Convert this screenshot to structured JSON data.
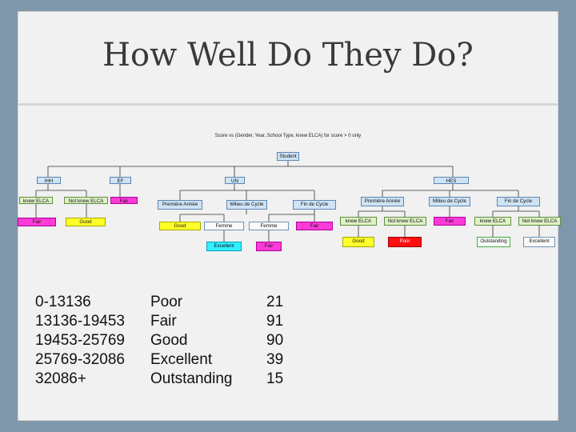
{
  "title": "How Well Do They Do?",
  "tree_title": "Score vs (Gender, Year, School Type, knew ELCA) for score > 0 only",
  "nodes": {
    "student": "Student",
    "ihh": "IHH",
    "ef": "EF",
    "un": "UN",
    "hes": "HES",
    "ihh_knew": "knew ELCA",
    "ihh_notknew": "Not knew ELCA",
    "ef_fair": "Fair",
    "ihh_knew_fair": "Fair",
    "ihh_notknew_good": "Good",
    "un_premiere": "Première Année",
    "un_milieu": "Milieu de Cycle",
    "un_fin": "Fin de Cycle",
    "un_milieu_good": "Good",
    "un_milieu_femme": "Femme",
    "un_fin_femme": "Femme",
    "un_fin_fair": "Fair",
    "un_femme_excellent": "Excellent",
    "un_femme_fair": "Fair",
    "hes_premiere": "Première Année",
    "hes_milieu": "Milieu de Cycle",
    "hes_fin": "Fin de Cycle",
    "hes_prem_knew": "knew ELCA",
    "hes_prem_notknew": "Not knew ELCA",
    "hes_milieu_fair": "Fair",
    "hes_fin_knew": "knew ELCA",
    "hes_fin_notknew": "Not knew ELCA",
    "hes_prem_knew_good": "Good",
    "hes_prem_notknew_poor": "Poor",
    "hes_fin_knew_out": "Outstanding",
    "hes_fin_notknew_exc": "Excellent"
  },
  "legend": {
    "ranges": [
      "0-13136",
      "13136-19453",
      "19453-25769",
      "25769-32086",
      "32086+"
    ],
    "grades": [
      "Poor",
      "Fair",
      "Good",
      "Excellent",
      "Outstanding"
    ],
    "counts": [
      "21",
      "91",
      "90",
      "39",
      "15"
    ]
  },
  "colors": {
    "poor": "#ff1010",
    "fair": "#ff3bd7",
    "good": "#ffff2a",
    "excellent": "#33f0ff",
    "internal_node": "#cfe3f6"
  }
}
